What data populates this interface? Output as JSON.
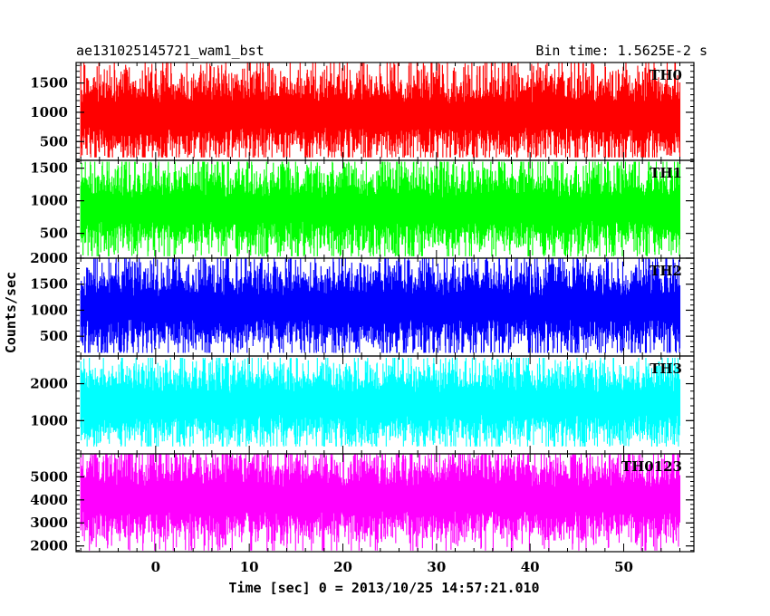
{
  "chart_data": {
    "type": "line",
    "title_left": "ae131025145721_wam1_bst",
    "title_right": "Bin time: 1.5625E-2 s",
    "xlabel": "Time [sec] 0 = 2013/10/25 14:57:21.010",
    "ylabel": "Counts/sec",
    "xlim": [
      -8.5,
      57.5
    ],
    "data_xrange": [
      -8,
      56
    ],
    "x_ticks": [
      0,
      10,
      20,
      30,
      40,
      50
    ],
    "x_minor_step": 2,
    "panels": [
      {
        "name": "TH0",
        "color": "#ff0000",
        "ylim": [
          180,
          1850
        ],
        "y_ticks": [
          500,
          1000,
          1500
        ],
        "y_minor_step": 100,
        "mean": 950,
        "min": 230,
        "max": 1850
      },
      {
        "name": "TH1",
        "color": "#00ff00",
        "ylim": [
          120,
          1620
        ],
        "y_ticks": [
          500,
          1000,
          1500
        ],
        "y_minor_step": 100,
        "mean": 870,
        "min": 150,
        "max": 1600
      },
      {
        "name": "TH2",
        "color": "#0000ff",
        "ylim": [
          120,
          2000
        ],
        "y_ticks": [
          500,
          1000,
          1500,
          2000
        ],
        "y_minor_step": 100,
        "mean": 1050,
        "min": 180,
        "max": 2000
      },
      {
        "name": "TH3",
        "color": "#00ffff",
        "ylim": [
          100,
          2750
        ],
        "y_ticks": [
          1000,
          2000
        ],
        "y_minor_step": 200,
        "mean": 1450,
        "min": 300,
        "max": 2700
      },
      {
        "name": "TH0123",
        "color": "#ff00ff",
        "ylim": [
          1750,
          6000
        ],
        "y_ticks": [
          2000,
          3000,
          4000,
          5000
        ],
        "y_minor_step": 200,
        "mean": 4050,
        "min": 1800,
        "max": 6000
      }
    ]
  }
}
